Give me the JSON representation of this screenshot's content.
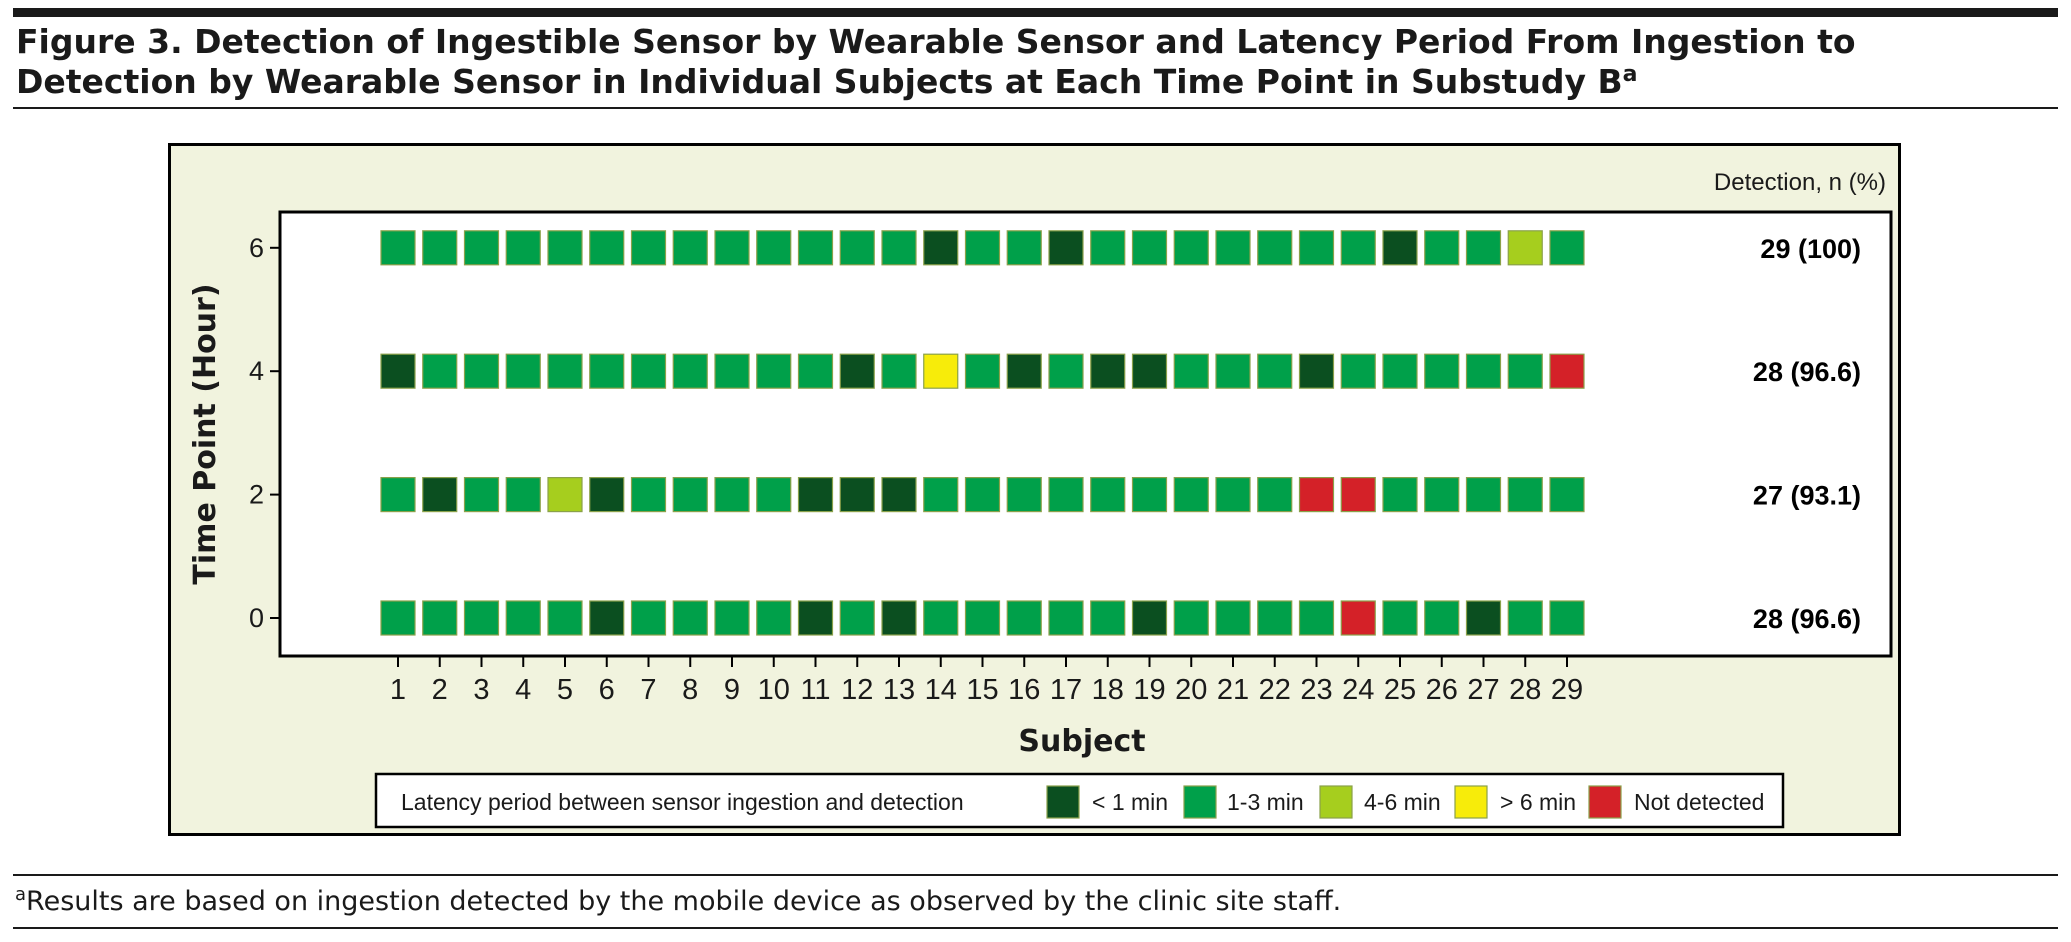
{
  "figure": {
    "title_main": "Figure 3. Detection of Ingestible Sensor by Wearable Sensor and Latency Period From Ingestion to Detection by Wearable Sensor in Individual Subjects at Each Time Point in Substudy B",
    "title_sup": "a",
    "footnote_sup": "a",
    "footnote_text": "Results are based on ingestion detected by the mobile device as observed by the clinic site staff."
  },
  "chart_data": {
    "type": "heatmap",
    "title": "",
    "xlabel": "Subject",
    "ylabel": "Time Point (Hour)",
    "x": [
      1,
      2,
      3,
      4,
      5,
      6,
      7,
      8,
      9,
      10,
      11,
      12,
      13,
      14,
      15,
      16,
      17,
      18,
      19,
      20,
      21,
      22,
      23,
      24,
      25,
      26,
      27,
      28,
      29
    ],
    "y": [
      0,
      2,
      4,
      6
    ],
    "detection_header": "Detection, n (%)",
    "rows": [
      {
        "time": 6,
        "detection": "29 (100)",
        "cells": [
          "b",
          "b",
          "b",
          "b",
          "b",
          "b",
          "b",
          "b",
          "b",
          "b",
          "b",
          "b",
          "b",
          "a",
          "b",
          "b",
          "a",
          "b",
          "b",
          "b",
          "b",
          "b",
          "b",
          "b",
          "a",
          "b",
          "b",
          "c",
          "b"
        ]
      },
      {
        "time": 4,
        "detection": "28 (96.6)",
        "cells": [
          "a",
          "b",
          "b",
          "b",
          "b",
          "b",
          "b",
          "b",
          "b",
          "b",
          "b",
          "a",
          "b",
          "d",
          "b",
          "a",
          "b",
          "a",
          "a",
          "b",
          "b",
          "b",
          "a",
          "b",
          "b",
          "b",
          "b",
          "b",
          "e"
        ]
      },
      {
        "time": 2,
        "detection": "27 (93.1)",
        "cells": [
          "b",
          "a",
          "b",
          "b",
          "c",
          "a",
          "b",
          "b",
          "b",
          "b",
          "a",
          "a",
          "a",
          "b",
          "b",
          "b",
          "b",
          "b",
          "b",
          "b",
          "b",
          "b",
          "e",
          "e",
          "b",
          "b",
          "b",
          "b",
          "b"
        ]
      },
      {
        "time": 0,
        "detection": "28 (96.6)",
        "cells": [
          "b",
          "b",
          "b",
          "b",
          "b",
          "a",
          "b",
          "b",
          "b",
          "b",
          "a",
          "b",
          "a",
          "b",
          "b",
          "b",
          "b",
          "b",
          "a",
          "b",
          "b",
          "b",
          "b",
          "e",
          "b",
          "b",
          "a",
          "b",
          "b"
        ]
      }
    ],
    "legend": {
      "title": "Latency period between sensor ingestion and detection",
      "categories": [
        {
          "key": "a",
          "label": "< 1 min",
          "color": "#0b4f20"
        },
        {
          "key": "b",
          "label": "1-3 min",
          "color": "#00a04a"
        },
        {
          "key": "c",
          "label": "4-6 min",
          "color": "#a6ce1e"
        },
        {
          "key": "d",
          "label": "> 6 min",
          "color": "#f7ec0a"
        },
        {
          "key": "e",
          "label": "Not detected",
          "color": "#d42128"
        }
      ]
    },
    "colors": {
      "panel_bg": "#f1f3de",
      "cell_border": "#8aa14a"
    }
  }
}
